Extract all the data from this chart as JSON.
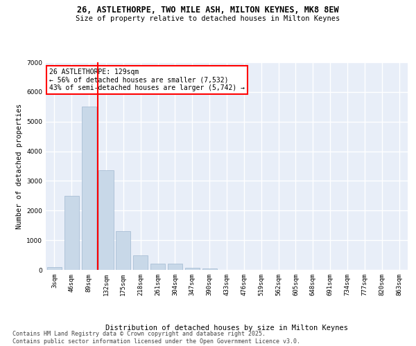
{
  "title_line1": "26, ASTLETHORPE, TWO MILE ASH, MILTON KEYNES, MK8 8EW",
  "title_line2": "Size of property relative to detached houses in Milton Keynes",
  "xlabel": "Distribution of detached houses by size in Milton Keynes",
  "ylabel": "Number of detached properties",
  "categories": [
    "3sqm",
    "46sqm",
    "89sqm",
    "132sqm",
    "175sqm",
    "218sqm",
    "261sqm",
    "304sqm",
    "347sqm",
    "390sqm",
    "433sqm",
    "476sqm",
    "519sqm",
    "562sqm",
    "605sqm",
    "648sqm",
    "691sqm",
    "734sqm",
    "777sqm",
    "820sqm",
    "863sqm"
  ],
  "values": [
    100,
    2500,
    5500,
    3350,
    1300,
    500,
    220,
    200,
    80,
    50,
    0,
    0,
    0,
    0,
    0,
    0,
    0,
    0,
    0,
    0,
    0
  ],
  "bar_color": "#c8d8e8",
  "bar_edgecolor": "#a0b8d0",
  "vline_x_index": 3,
  "vline_color": "red",
  "annotation_text": "26 ASTLETHORPE: 129sqm\n← 56% of detached houses are smaller (7,532)\n43% of semi-detached houses are larger (5,742) →",
  "annotation_box_color": "white",
  "annotation_box_edgecolor": "red",
  "ylim": [
    0,
    7000
  ],
  "yticks": [
    0,
    1000,
    2000,
    3000,
    4000,
    5000,
    6000,
    7000
  ],
  "background_color": "#e8eef8",
  "grid_color": "white",
  "footer_text": "Contains HM Land Registry data © Crown copyright and database right 2025.\nContains public sector information licensed under the Open Government Licence v3.0.",
  "title_fontsize": 8.5,
  "subtitle_fontsize": 7.5,
  "axis_label_fontsize": 7.5,
  "tick_fontsize": 6.5,
  "annotation_fontsize": 7,
  "footer_fontsize": 6
}
